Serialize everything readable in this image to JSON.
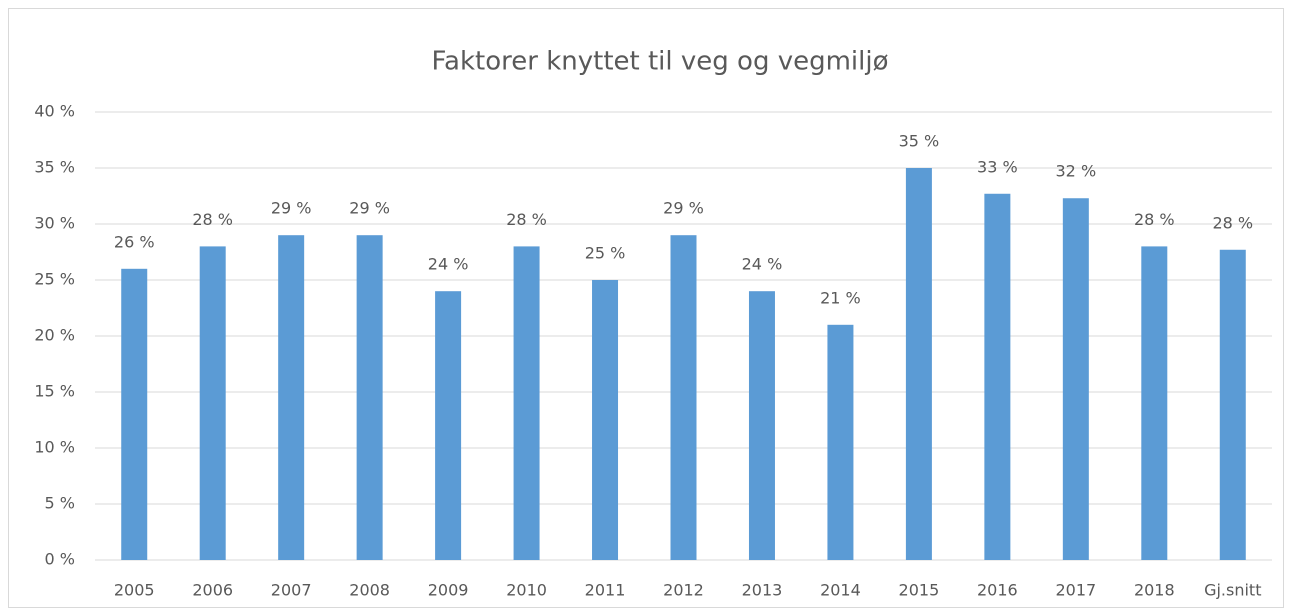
{
  "chart_data": {
    "type": "bar",
    "title": "Faktorer knyttet til veg og vegmiljø",
    "categories": [
      "2005",
      "2006",
      "2007",
      "2008",
      "2009",
      "2010",
      "2011",
      "2012",
      "2013",
      "2014",
      "2015",
      "2016",
      "2017",
      "2018",
      "Gj.snitt"
    ],
    "values": [
      26,
      28,
      29,
      29,
      24,
      28,
      25,
      29,
      24,
      21,
      35,
      32.7,
      32.3,
      28,
      27.7
    ],
    "value_labels": [
      "26 %",
      "28 %",
      "29 %",
      "29 %",
      "24 %",
      "28 %",
      "25 %",
      "29 %",
      "24 %",
      "21 %",
      "35 %",
      "33 %",
      "32 %",
      "28 %",
      "28 %"
    ],
    "color": "#5b9bd5",
    "ylim": [
      0,
      40
    ],
    "yticks": [
      {
        "value": 0,
        "label": "0 %"
      },
      {
        "value": 5,
        "label": "5 %"
      },
      {
        "value": 10,
        "label": "10 %"
      },
      {
        "value": 15,
        "label": "15 %"
      },
      {
        "value": 20,
        "label": "20 %"
      },
      {
        "value": 25,
        "label": "25 %"
      },
      {
        "value": 30,
        "label": "30 %"
      },
      {
        "value": 35,
        "label": "35 %"
      },
      {
        "value": 40,
        "label": "40 %"
      }
    ],
    "grid": true
  }
}
